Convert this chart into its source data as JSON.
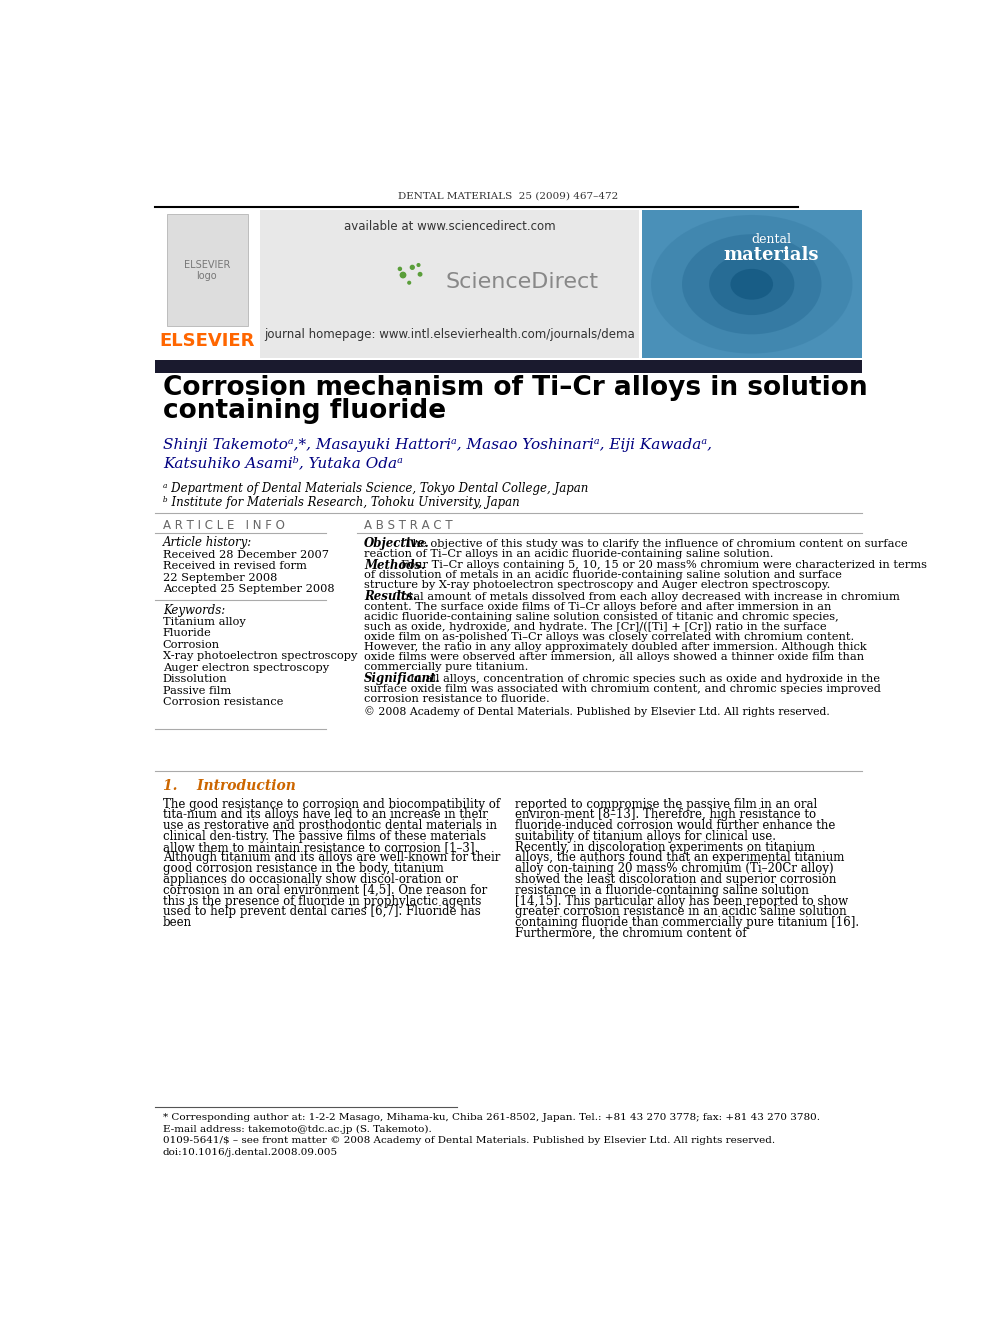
{
  "page_title": "DENTAL MATERIALS  25 (2009) 467–472",
  "journal_url": "available at www.sciencedirect.com",
  "journal_homepage": "journal homepage: www.intl.elsevierhealth.com/journals/dema",
  "elsevier_text": "ELSEVIER",
  "sciencedirect_text": "ScienceDirect",
  "article_title_line1": "Corrosion mechanism of Ti–Cr alloys in solution",
  "article_title_line2": "containing fluoride",
  "authors": "Shinji Takemotoᵃ,*, Masayuki Hattoriᵃ, Masao Yoshinariᵃ, Eiji Kawadaᵃ,",
  "authors2": "Katsuhiko Asamiᵇ, Yutaka Odaᵃ",
  "affil_a": "ᵃ Department of Dental Materials Science, Tokyo Dental College, Japan",
  "affil_b": "ᵇ Institute for Materials Research, Tohoku University, Japan",
  "article_info_header": "A R T I C L E   I N F O",
  "article_history_label": "Article history:",
  "received1": "Received 28 December 2007",
  "received2": "Received in revised form",
  "received2b": "22 September 2008",
  "accepted": "Accepted 25 September 2008",
  "keywords_label": "Keywords:",
  "keywords": [
    "Titanium alloy",
    "Fluoride",
    "Corrosion",
    "X-ray photoelectron spectroscopy",
    "Auger electron spectroscopy",
    "Dissolution",
    "Passive film",
    "Corrosion resistance"
  ],
  "abstract_header": "A B S T R A C T",
  "abstract_objective_label": "Objective.",
  "abstract_objective": "The objective of this study was to clarify the influence of chromium content on surface reaction of Ti–Cr alloys in an acidic fluoride-containing saline solution.",
  "abstract_methods_label": "Methods.",
  "abstract_methods": "Four Ti–Cr alloys containing 5, 10, 15 or 20 mass% chromium were characterized in terms of dissolution of metals in an acidic fluoride-containing saline solution and surface structure by X-ray photoelectron spectroscopy and Auger electron spectroscopy.",
  "abstract_results_label": "Results.",
  "abstract_results": "Total amount of metals dissolved from each alloy decreased with increase in chromium content. The surface oxide films of Ti–Cr alloys before and after immersion in an acidic fluoride-containing saline solution consisted of titanic and chromic species, such as oxide, hydroxide, and hydrate. The [Cr]/([Ti] + [Cr]) ratio in the surface oxide film on as-polished Ti–Cr alloys was closely correlated with chromium content. However, the ratio in any alloy approximately doubled after immersion. Although thick oxide films were observed after immersion, all alloys showed a thinner oxide film than commercially pure titanium.",
  "abstract_significant_label": "Significant.",
  "abstract_significant": "In all alloys, concentration of chromic species such as oxide and hydroxide in the surface oxide film was associated with chromium content, and chromic species improved corrosion resistance to fluoride.",
  "abstract_copyright": "© 2008 Academy of Dental Materials. Published by Elsevier Ltd. All rights reserved.",
  "intro_header": "1.    Introduction",
  "intro_col1": "The good resistance to corrosion and biocompatibility of tita-nium and its alloys have led to an increase in their use as restorative and prosthodontic dental materials in clinical den-tistry. The passive films of these materials allow them to maintain resistance to corrosion [1–3]. Although titanium and its alloys are well-known for their good corrosion resistance in the body, titanium appliances do occasionally show discol-oration or corrosion in an oral environment [4,5]. One reason for this is the presence of fluoride in prophylactic agents used to help prevent dental caries [6,7]. Fluoride has been",
  "intro_col2": "reported to compromise the passive film in an oral environ-ment [8–13]. Therefore, high resistance to fluoride-induced corrosion would further enhance the suitability of titanium alloys for clinical use.     Recently, in discoloration experiments on titanium alloys, the authors found that an experimental titanium alloy con-taining 20 mass% chromium (Ti–20Cr alloy) showed the least discoloration and superior corrosion resistance in a fluoride-containing saline solution [14,15]. This particular alloy has been reported to show greater corrosion resistance in an acidic saline solution containing fluoride than commercially pure titanium [16]. Furthermore, the chromium content of",
  "footnote1": "* Corresponding author at: 1-2-2 Masago, Mihama-ku, Chiba 261-8502, Japan. Tel.: +81 43 270 3778; fax: +81 43 270 3780.",
  "footnote2": "E-mail address: takemoto@tdc.ac.jp (S. Takemoto).",
  "footnote3": "0109-5641/$ – see front matter © 2008 Academy of Dental Materials. Published by Elsevier Ltd. All rights reserved.",
  "footnote4": "doi:10.1016/j.dental.2008.09.005",
  "bg_color": "#ffffff",
  "elsevier_color": "#ff6600",
  "sciencedirect_green": "#5a9e3a",
  "authors_color": "#000080",
  "intro_header_color": "#cc6600",
  "dark_bar_color": "#1a1a2e",
  "cover_bg_color": "#4a90b8"
}
